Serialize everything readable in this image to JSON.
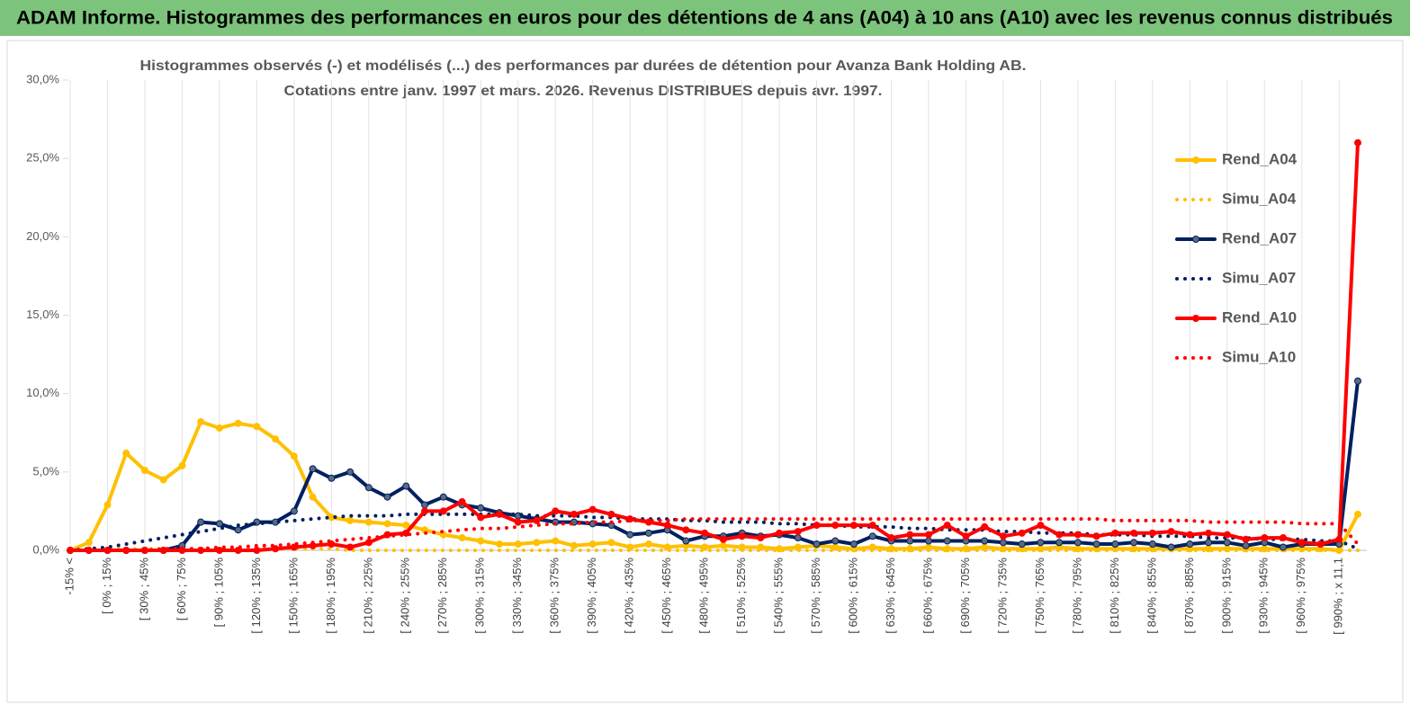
{
  "header": {
    "title": "ADAM Informe. Histogrammes des performances en euros pour des détentions de 4 ans (A04) à 10 ans (A10) avec les revenus connus distribués"
  },
  "chart_data": {
    "type": "line",
    "title": "Histogrammes observés (-) et modélisés (...) des performances par durées de détention pour Avanza Bank Holding AB.",
    "subtitle": "Cotations entre janv. 1997 et mars. 2026. Revenus DISTRIBUES depuis avr. 1997.",
    "categories": [
      "-15% <",
      null,
      "[ 0% ; 15%",
      null,
      "[ 30% ; 45%",
      null,
      "[ 60% ; 75%",
      null,
      "[ 90% ; 105%",
      null,
      "[ 120% ; 135%",
      null,
      "[ 150% ; 165%",
      null,
      "[ 180% ; 195%",
      null,
      "[ 210% ; 225%",
      null,
      "[ 240% ; 255%",
      null,
      "[ 270% ; 285%",
      null,
      "[ 300% ; 315%",
      null,
      "[ 330% ; 345%",
      null,
      "[ 360% ; 375%",
      null,
      "[ 390% ; 405%",
      null,
      "[ 420% ; 435%",
      null,
      "[ 450% ; 465%",
      null,
      "[ 480% ; 495%",
      null,
      "[ 510% ; 525%",
      null,
      "[ 540% ; 555%",
      null,
      "[ 570% ; 585%",
      null,
      "[ 600% ; 615%",
      null,
      "[ 630% ; 645%",
      null,
      "[ 660% ; 675%",
      null,
      "[ 690% ; 705%",
      null,
      "[ 720% ; 735%",
      null,
      "[ 750% ; 765%",
      null,
      "[ 780% ; 795%",
      null,
      "[ 810% ; 825%",
      null,
      "[ 840% ; 855%",
      null,
      "[ 870% ; 885%",
      null,
      "[ 900% ; 915%",
      null,
      "[ 930% ; 945%",
      null,
      "[ 960% ; 975%",
      null,
      "[ 990% ; x 11,1",
      null
    ],
    "series": [
      {
        "name": "Rend_A04",
        "color": "#ffc000",
        "line_style": "solid",
        "markers": true,
        "values": [
          0,
          0.5,
          2.9,
          6.2,
          5.1,
          4.5,
          5.4,
          8.2,
          7.8,
          8.1,
          7.9,
          7.1,
          6.0,
          3.4,
          2.1,
          1.9,
          1.8,
          1.7,
          1.6,
          1.3,
          1.0,
          0.8,
          0.6,
          0.4,
          0.4,
          0.5,
          0.6,
          0.3,
          0.4,
          0.5,
          0.2,
          0.4,
          0.2,
          0.3,
          0.2,
          0.3,
          0.2,
          0.2,
          0.1,
          0.2,
          0.3,
          0.2,
          0.1,
          0.2,
          0.1,
          0.1,
          0.2,
          0.1,
          0.1,
          0.2,
          0.1,
          0.1,
          0.1,
          0.2,
          0.1,
          0.1,
          0.1,
          0.1,
          0.1,
          0.1,
          0.1,
          0.1,
          0.1,
          0.1,
          0.1,
          0.1,
          0.1,
          0.1,
          0,
          2.3
        ]
      },
      {
        "name": "Simu_A04",
        "color": "#ffc000",
        "line_style": "dotted",
        "markers": false,
        "values": [
          0.1,
          0.1,
          0.1,
          0.1,
          0.1,
          0.1,
          0.1,
          0.1,
          0.1,
          0.1,
          0.1,
          0.1,
          0.1,
          0.1,
          0.1,
          0,
          0,
          0,
          0,
          0,
          0,
          0,
          0,
          0,
          0,
          0,
          0,
          0,
          0,
          0,
          0,
          0,
          0,
          0,
          0,
          0,
          0,
          0,
          0,
          0,
          0,
          0,
          0,
          0,
          0,
          0,
          0,
          0,
          0,
          0,
          0,
          0,
          0,
          0,
          0,
          0,
          0,
          0,
          0,
          0,
          0,
          0,
          0,
          0,
          0,
          0,
          0,
          0,
          0,
          0
        ]
      },
      {
        "name": "Rend_A07",
        "color": "#002060",
        "line_style": "solid",
        "markers": true,
        "values": [
          0,
          0,
          0,
          0,
          0,
          0,
          0.3,
          1.8,
          1.7,
          1.3,
          1.8,
          1.8,
          2.5,
          5.2,
          4.6,
          5.0,
          4.0,
          3.4,
          4.1,
          2.9,
          3.4,
          2.9,
          2.7,
          2.4,
          2.2,
          2.0,
          1.8,
          1.8,
          1.7,
          1.6,
          1.0,
          1.1,
          1.3,
          0.6,
          0.9,
          0.9,
          1.1,
          0.9,
          1.0,
          0.8,
          0.4,
          0.6,
          0.4,
          0.9,
          0.6,
          0.6,
          0.6,
          0.6,
          0.6,
          0.6,
          0.5,
          0.4,
          0.5,
          0.5,
          0.5,
          0.4,
          0.4,
          0.5,
          0.4,
          0.2,
          0.4,
          0.5,
          0.5,
          0.3,
          0.5,
          0.2,
          0.4,
          0.4,
          0.4,
          10.8
        ]
      },
      {
        "name": "Simu_A07",
        "color": "#002060",
        "line_style": "dotted",
        "markers": false,
        "values": [
          0,
          0.1,
          0.2,
          0.4,
          0.6,
          0.8,
          1.0,
          1.2,
          1.4,
          1.6,
          1.7,
          1.8,
          1.9,
          2.0,
          2.1,
          2.2,
          2.2,
          2.2,
          2.3,
          2.3,
          2.3,
          2.3,
          2.3,
          2.3,
          2.3,
          2.2,
          2.2,
          2.2,
          2.1,
          2.1,
          2.0,
          2.0,
          2.0,
          1.9,
          1.9,
          1.8,
          1.8,
          1.8,
          1.7,
          1.7,
          1.6,
          1.6,
          1.5,
          1.5,
          1.5,
          1.4,
          1.4,
          1.3,
          1.3,
          1.3,
          1.2,
          1.2,
          1.1,
          1.1,
          1.1,
          1.0,
          1.0,
          1.0,
          0.9,
          0.9,
          0.9,
          0.8,
          0.8,
          0.8,
          0.7,
          0.7,
          0.7,
          0.6,
          0.6,
          0.1
        ]
      },
      {
        "name": "Rend_A10",
        "color": "#ff0000",
        "line_style": "solid",
        "markers": true,
        "values": [
          0,
          0,
          0,
          0,
          0,
          0,
          0,
          0,
          0,
          0,
          0,
          0.1,
          0.2,
          0.3,
          0.4,
          0.2,
          0.5,
          1.0,
          1.1,
          2.5,
          2.5,
          3.1,
          2.1,
          2.3,
          1.8,
          1.9,
          2.5,
          2.3,
          2.6,
          2.3,
          2.0,
          1.8,
          1.6,
          1.3,
          1.1,
          0.7,
          0.9,
          0.8,
          1.1,
          1.2,
          1.6,
          1.6,
          1.6,
          1.6,
          0.8,
          1.0,
          1.0,
          1.6,
          0.9,
          1.5,
          0.9,
          1.1,
          1.6,
          1.0,
          1.0,
          0.9,
          1.1,
          1.1,
          1.1,
          1.2,
          1.0,
          1.1,
          1.0,
          0.7,
          0.8,
          0.8,
          0.5,
          0.4,
          0.7,
          26.0
        ]
      },
      {
        "name": "Simu_A10",
        "color": "#ff0000",
        "line_style": "dotted",
        "markers": false,
        "values": [
          0,
          0,
          0,
          0,
          0,
          0.1,
          0.1,
          0.1,
          0.2,
          0.2,
          0.3,
          0.3,
          0.4,
          0.5,
          0.6,
          0.7,
          0.8,
          0.9,
          1.0,
          1.1,
          1.2,
          1.3,
          1.4,
          1.4,
          1.5,
          1.6,
          1.7,
          1.7,
          1.8,
          1.8,
          1.9,
          1.9,
          1.9,
          2.0,
          2.0,
          2.0,
          2.0,
          2.0,
          2.0,
          2.0,
          2.0,
          2.0,
          2.0,
          2.0,
          2.0,
          2.0,
          2.0,
          2.0,
          2.0,
          2.0,
          2.0,
          2.0,
          2.0,
          2.0,
          2.0,
          2.0,
          1.9,
          1.9,
          1.9,
          1.9,
          1.9,
          1.8,
          1.8,
          1.8,
          1.8,
          1.8,
          1.7,
          1.7,
          1.7,
          0.4
        ]
      }
    ],
    "ylim": [
      0,
      30
    ],
    "yticks": [
      {
        "value": 0,
        "label": "0,0%"
      },
      {
        "value": 5,
        "label": "5,0%"
      },
      {
        "value": 10,
        "label": "10,0%"
      },
      {
        "value": 15,
        "label": "15,0%"
      },
      {
        "value": 20,
        "label": "20,0%"
      },
      {
        "value": 25,
        "label": "25,0%"
      },
      {
        "value": 30,
        "label": "30,0%"
      }
    ],
    "grid": false,
    "xgrid": true,
    "legend": "right"
  }
}
